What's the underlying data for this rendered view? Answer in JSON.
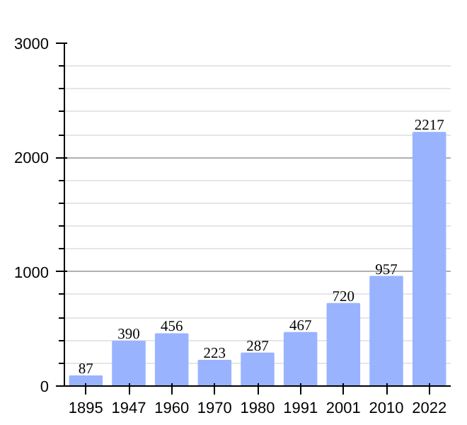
{
  "chart_data": {
    "type": "bar",
    "categories": [
      "1895",
      "1947",
      "1960",
      "1970",
      "1980",
      "1991",
      "2001",
      "2010",
      "2022"
    ],
    "values": [
      87,
      390,
      456,
      223,
      287,
      467,
      720,
      957,
      2217
    ],
    "color": "#99b3ff",
    "ylim": [
      0,
      3000
    ],
    "yticks": [
      0,
      {
        "value": 200,
        "label": null
      },
      {
        "value": 400,
        "label": null
      },
      {
        "value": 600,
        "label": null
      },
      {
        "value": 800,
        "label": null
      },
      1000,
      {
        "value": 1200,
        "label": null
      },
      {
        "value": 1400,
        "label": null
      },
      {
        "value": 1600,
        "label": null
      },
      {
        "value": 1800,
        "label": null
      },
      2000,
      {
        "value": 2200,
        "label": null
      },
      {
        "value": 2400,
        "label": null
      },
      {
        "value": 2600,
        "label": null
      },
      {
        "value": 2800,
        "label": null
      },
      3000
    ],
    "grid": "y",
    "data_labels": true
  }
}
